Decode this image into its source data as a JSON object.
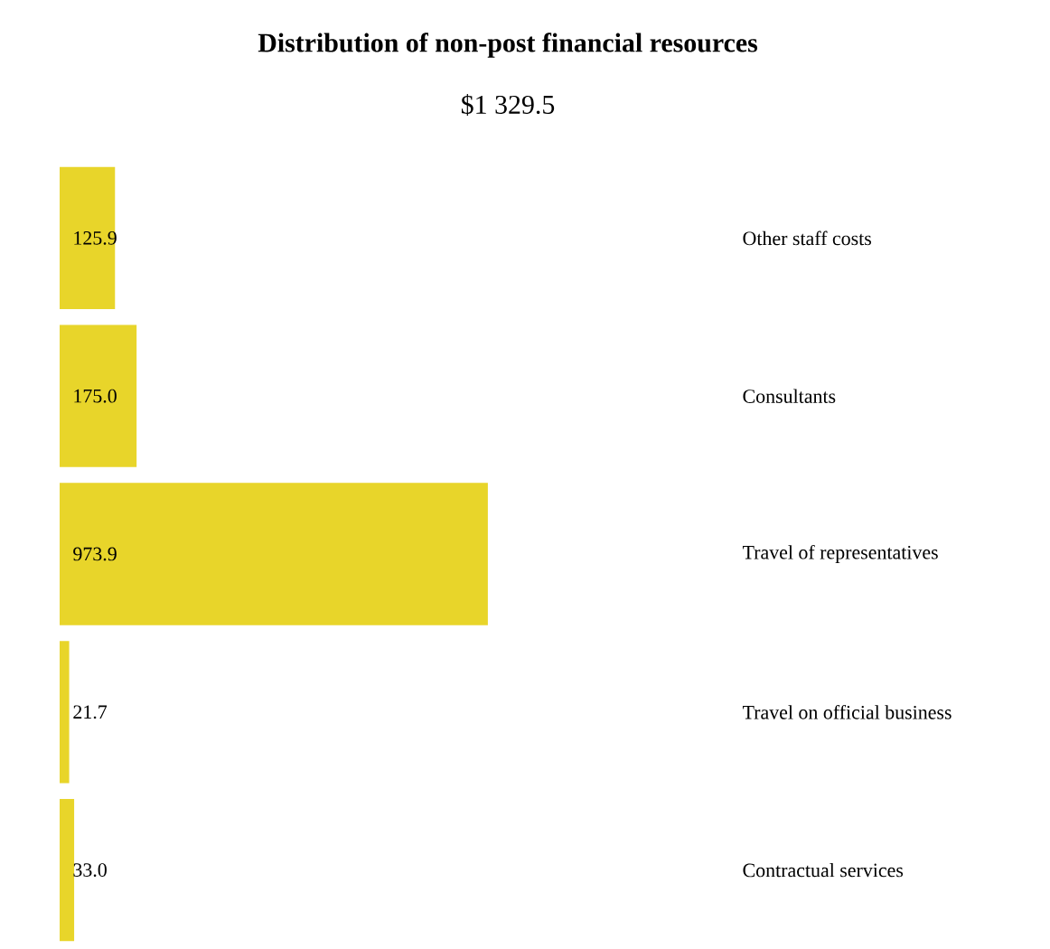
{
  "chart_data": {
    "type": "bar",
    "orientation": "horizontal",
    "title": "Distribution of non-post financial resources",
    "subtitle": "$1 329.5",
    "categories": [
      "Other staff costs",
      "Consultants",
      "Travel of representatives",
      "Travel on official business",
      "Contractual services"
    ],
    "values": [
      125.9,
      175.0,
      973.9,
      21.7,
      33.0
    ],
    "value_labels": [
      "125.9",
      "175.0",
      "973.9",
      "21.7",
      "33.0"
    ],
    "color": "#e8d52a"
  }
}
